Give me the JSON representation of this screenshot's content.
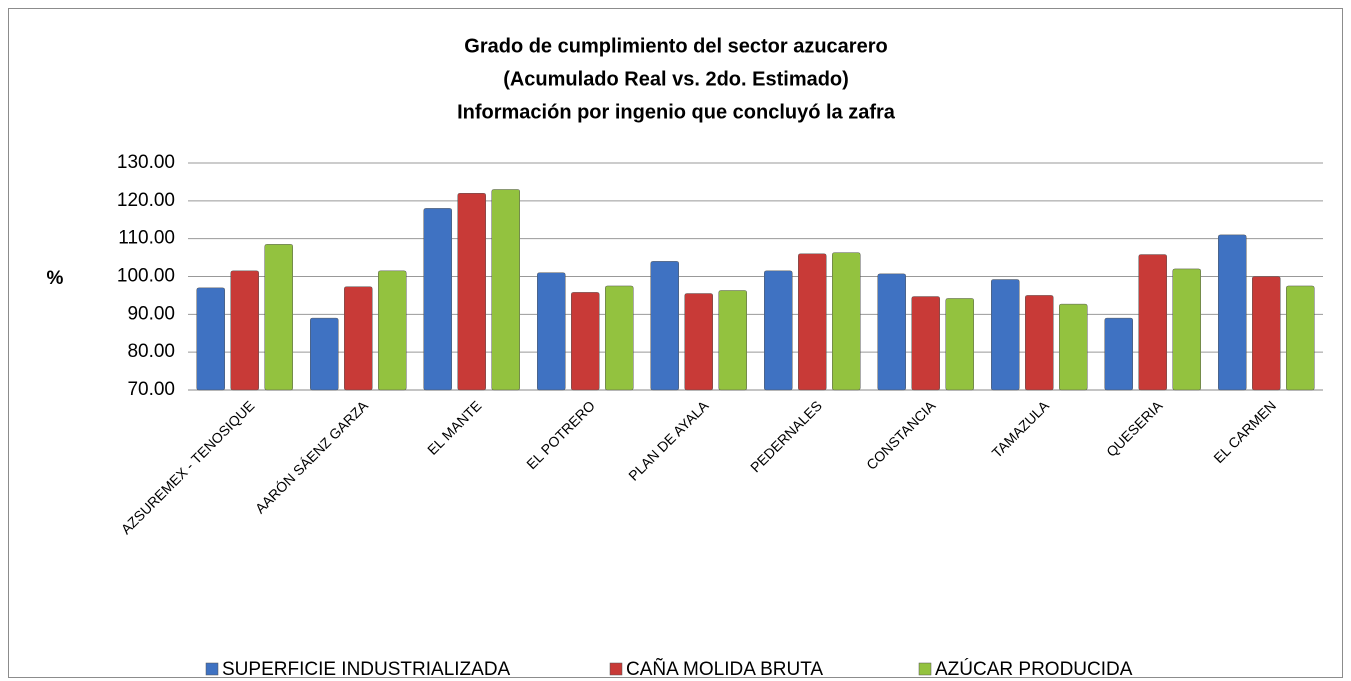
{
  "chart_data": {
    "type": "bar",
    "title": [
      "Grado de cumplimiento  del sector azucarero",
      "(Acumulado Real vs. 2do. Estimado)",
      "Información por ingenio que concluyó la zafra"
    ],
    "y_label": "%",
    "categories": [
      "AZSUREMEX - TENOSIQUE",
      "AARÓN SÁENZ GARZA",
      "EL MANTE",
      "EL POTRERO",
      "PLAN DE AYALA",
      "PEDERNALES",
      "CONSTANCIA",
      "TAMAZULA",
      "QUESERIA",
      "EL CARMEN"
    ],
    "series": [
      {
        "name": "SUPERFICIE INDUSTRIALIZADA",
        "color": "#3f72c2",
        "values": [
          97,
          89,
          118,
          101,
          104,
          101.5,
          100.7,
          99.2,
          89,
          111
        ]
      },
      {
        "name": "CAÑA MOLIDA BRUTA",
        "color": "#c83a37",
        "values": [
          101.5,
          97.3,
          122,
          95.8,
          95.5,
          106,
          94.7,
          95,
          105.8,
          100
        ]
      },
      {
        "name": "AZÚCAR PRODUCIDA",
        "color": "#93c23f",
        "values": [
          108.5,
          101.5,
          123,
          97.5,
          96.3,
          106.3,
          94.2,
          92.7,
          102,
          97.5
        ]
      }
    ],
    "ylim": [
      70,
      130
    ],
    "yticks": [
      {
        "value": 70,
        "label": "70.00"
      },
      {
        "value": 80,
        "label": "80.00"
      },
      {
        "value": 90,
        "label": "90.00"
      },
      {
        "value": 100,
        "label": "100.00"
      },
      {
        "value": 110,
        "label": "110.00"
      },
      {
        "value": 120,
        "label": "120.00"
      },
      {
        "value": 130,
        "label": "130.00"
      }
    ],
    "grid": true,
    "legend": "bottom"
  }
}
